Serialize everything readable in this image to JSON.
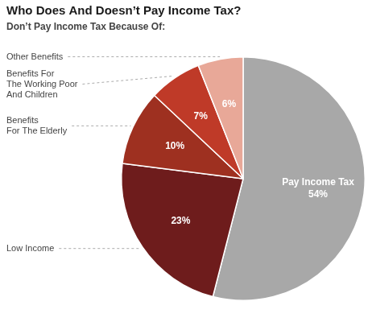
{
  "chart_data": {
    "type": "pie",
    "title": "Who Does And Doesn’t Pay Income Tax?",
    "subtitle": "Don’t Pay Income Tax Because Of:",
    "categories": [
      null,
      "Low Income",
      "Benefits\nFor The Elderly",
      "Benefits For\nThe Working Poor\nAnd Children",
      "Other Benefits"
    ],
    "values": [
      54,
      23,
      10,
      7,
      6
    ],
    "value_labels": [
      "Pay Income Tax\n54%",
      "23%",
      "10%",
      "7%",
      "6%"
    ],
    "colors": [
      "#a8a8a8",
      "#6e1c1c",
      "#9e3020",
      "#bf3a28",
      "#e8a898"
    ],
    "data_labels": true
  }
}
